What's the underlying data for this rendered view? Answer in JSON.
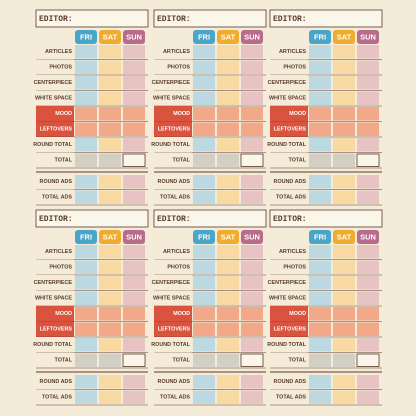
{
  "panels": [
    {
      "editor": "EDITOR:",
      "days": [
        "FRI",
        "SAT",
        "SUN"
      ],
      "rows": [
        "ARTICLES",
        "PHOTOS",
        "CENTERPIECE",
        "WHITE SPACE",
        "MOOD",
        "LEFTOVERS",
        "ROUND TOTAL",
        "TOTAL"
      ],
      "ad_rows": [
        "ROUND ADS",
        "TOTAL ADS"
      ]
    },
    {
      "editor": "EDITOR:",
      "days": [
        "FRI",
        "SAT",
        "SUN"
      ],
      "rows": [
        "ARTICLES",
        "PHOTOS",
        "CENTERPIECE",
        "WHITE SPACE",
        "MOOD",
        "LEFTOVERS",
        "ROUND TOTAL",
        "TOTAL"
      ],
      "ad_rows": [
        "ROUND ADS",
        "TOTAL ADS"
      ]
    },
    {
      "editor": "EDITOR:",
      "days": [
        "FRI",
        "SAT",
        "SUN"
      ],
      "rows": [
        "ARTICLES",
        "PHOTOS",
        "CENTERPIECE",
        "WHITE SPACE",
        "MOOD",
        "LEFTOVERS",
        "ROUND TOTAL",
        "TOTAL"
      ],
      "ad_rows": [
        "ROUND ADS",
        "TOTAL ADS"
      ]
    },
    {
      "editor": "EDITOR:",
      "days": [
        "FRI",
        "SAT",
        "SUN"
      ],
      "rows": [
        "ARTICLES",
        "PHOTOS",
        "CENTERPIECE",
        "WHITE SPACE",
        "MOOD",
        "LEFTOVERS",
        "ROUND TOTAL",
        "TOTAL"
      ],
      "ad_rows": [
        "ROUND ADS",
        "TOTAL ADS"
      ]
    },
    {
      "editor": "EDITOR:",
      "days": [
        "FRI",
        "SAT",
        "SUN"
      ],
      "rows": [
        "ARTICLES",
        "PHOTOS",
        "CENTERPIECE",
        "WHITE SPACE",
        "MOOD",
        "LEFTOVERS",
        "ROUND TOTAL",
        "TOTAL"
      ],
      "ad_rows": [
        "ROUND ADS",
        "TOTAL ADS"
      ]
    },
    {
      "editor": "EDITOR:",
      "days": [
        "FRI",
        "SAT",
        "SUN"
      ],
      "rows": [
        "ARTICLES",
        "PHOTOS",
        "CENTERPIECE",
        "WHITE SPACE",
        "MOOD",
        "LEFTOVERS",
        "ROUND TOTAL",
        "TOTAL"
      ],
      "ad_rows": [
        "ROUND ADS",
        "TOTAL ADS"
      ]
    }
  ]
}
